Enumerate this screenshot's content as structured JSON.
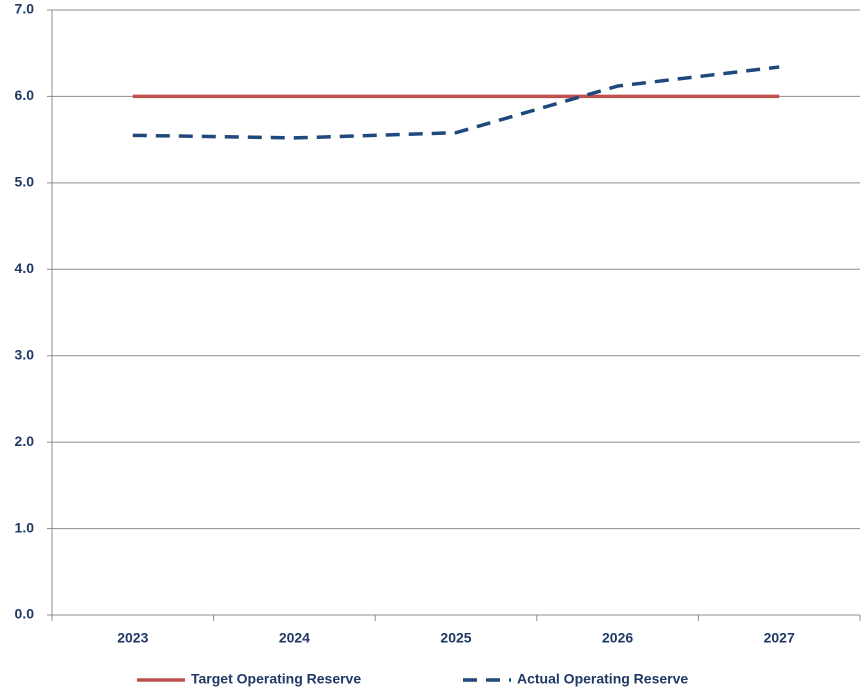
{
  "chart_data": {
    "type": "line",
    "categories": [
      "2023",
      "2024",
      "2025",
      "2026",
      "2027"
    ],
    "series": [
      {
        "name": "Target Operating Reserve",
        "color": "#c0504d",
        "dashed": false,
        "values": [
          6.0,
          6.0,
          6.0,
          6.0,
          6.0
        ]
      },
      {
        "name": "Actual Operating Reserve",
        "color": "#1f497d",
        "dashed": true,
        "values": [
          5.55,
          5.52,
          5.58,
          6.12,
          6.34
        ]
      }
    ],
    "ylim": [
      0,
      7
    ],
    "yticks": [
      {
        "value": 0,
        "label": "0.0"
      },
      {
        "value": 1,
        "label": "1.0"
      },
      {
        "value": 2,
        "label": "2.0"
      },
      {
        "value": 3,
        "label": "3.0"
      },
      {
        "value": 4,
        "label": "4.0"
      },
      {
        "value": 5,
        "label": "5.0"
      },
      {
        "value": 6,
        "label": "6.0"
      },
      {
        "value": 7,
        "label": "7.0"
      }
    ],
    "grid": true,
    "legend": "bottom"
  }
}
